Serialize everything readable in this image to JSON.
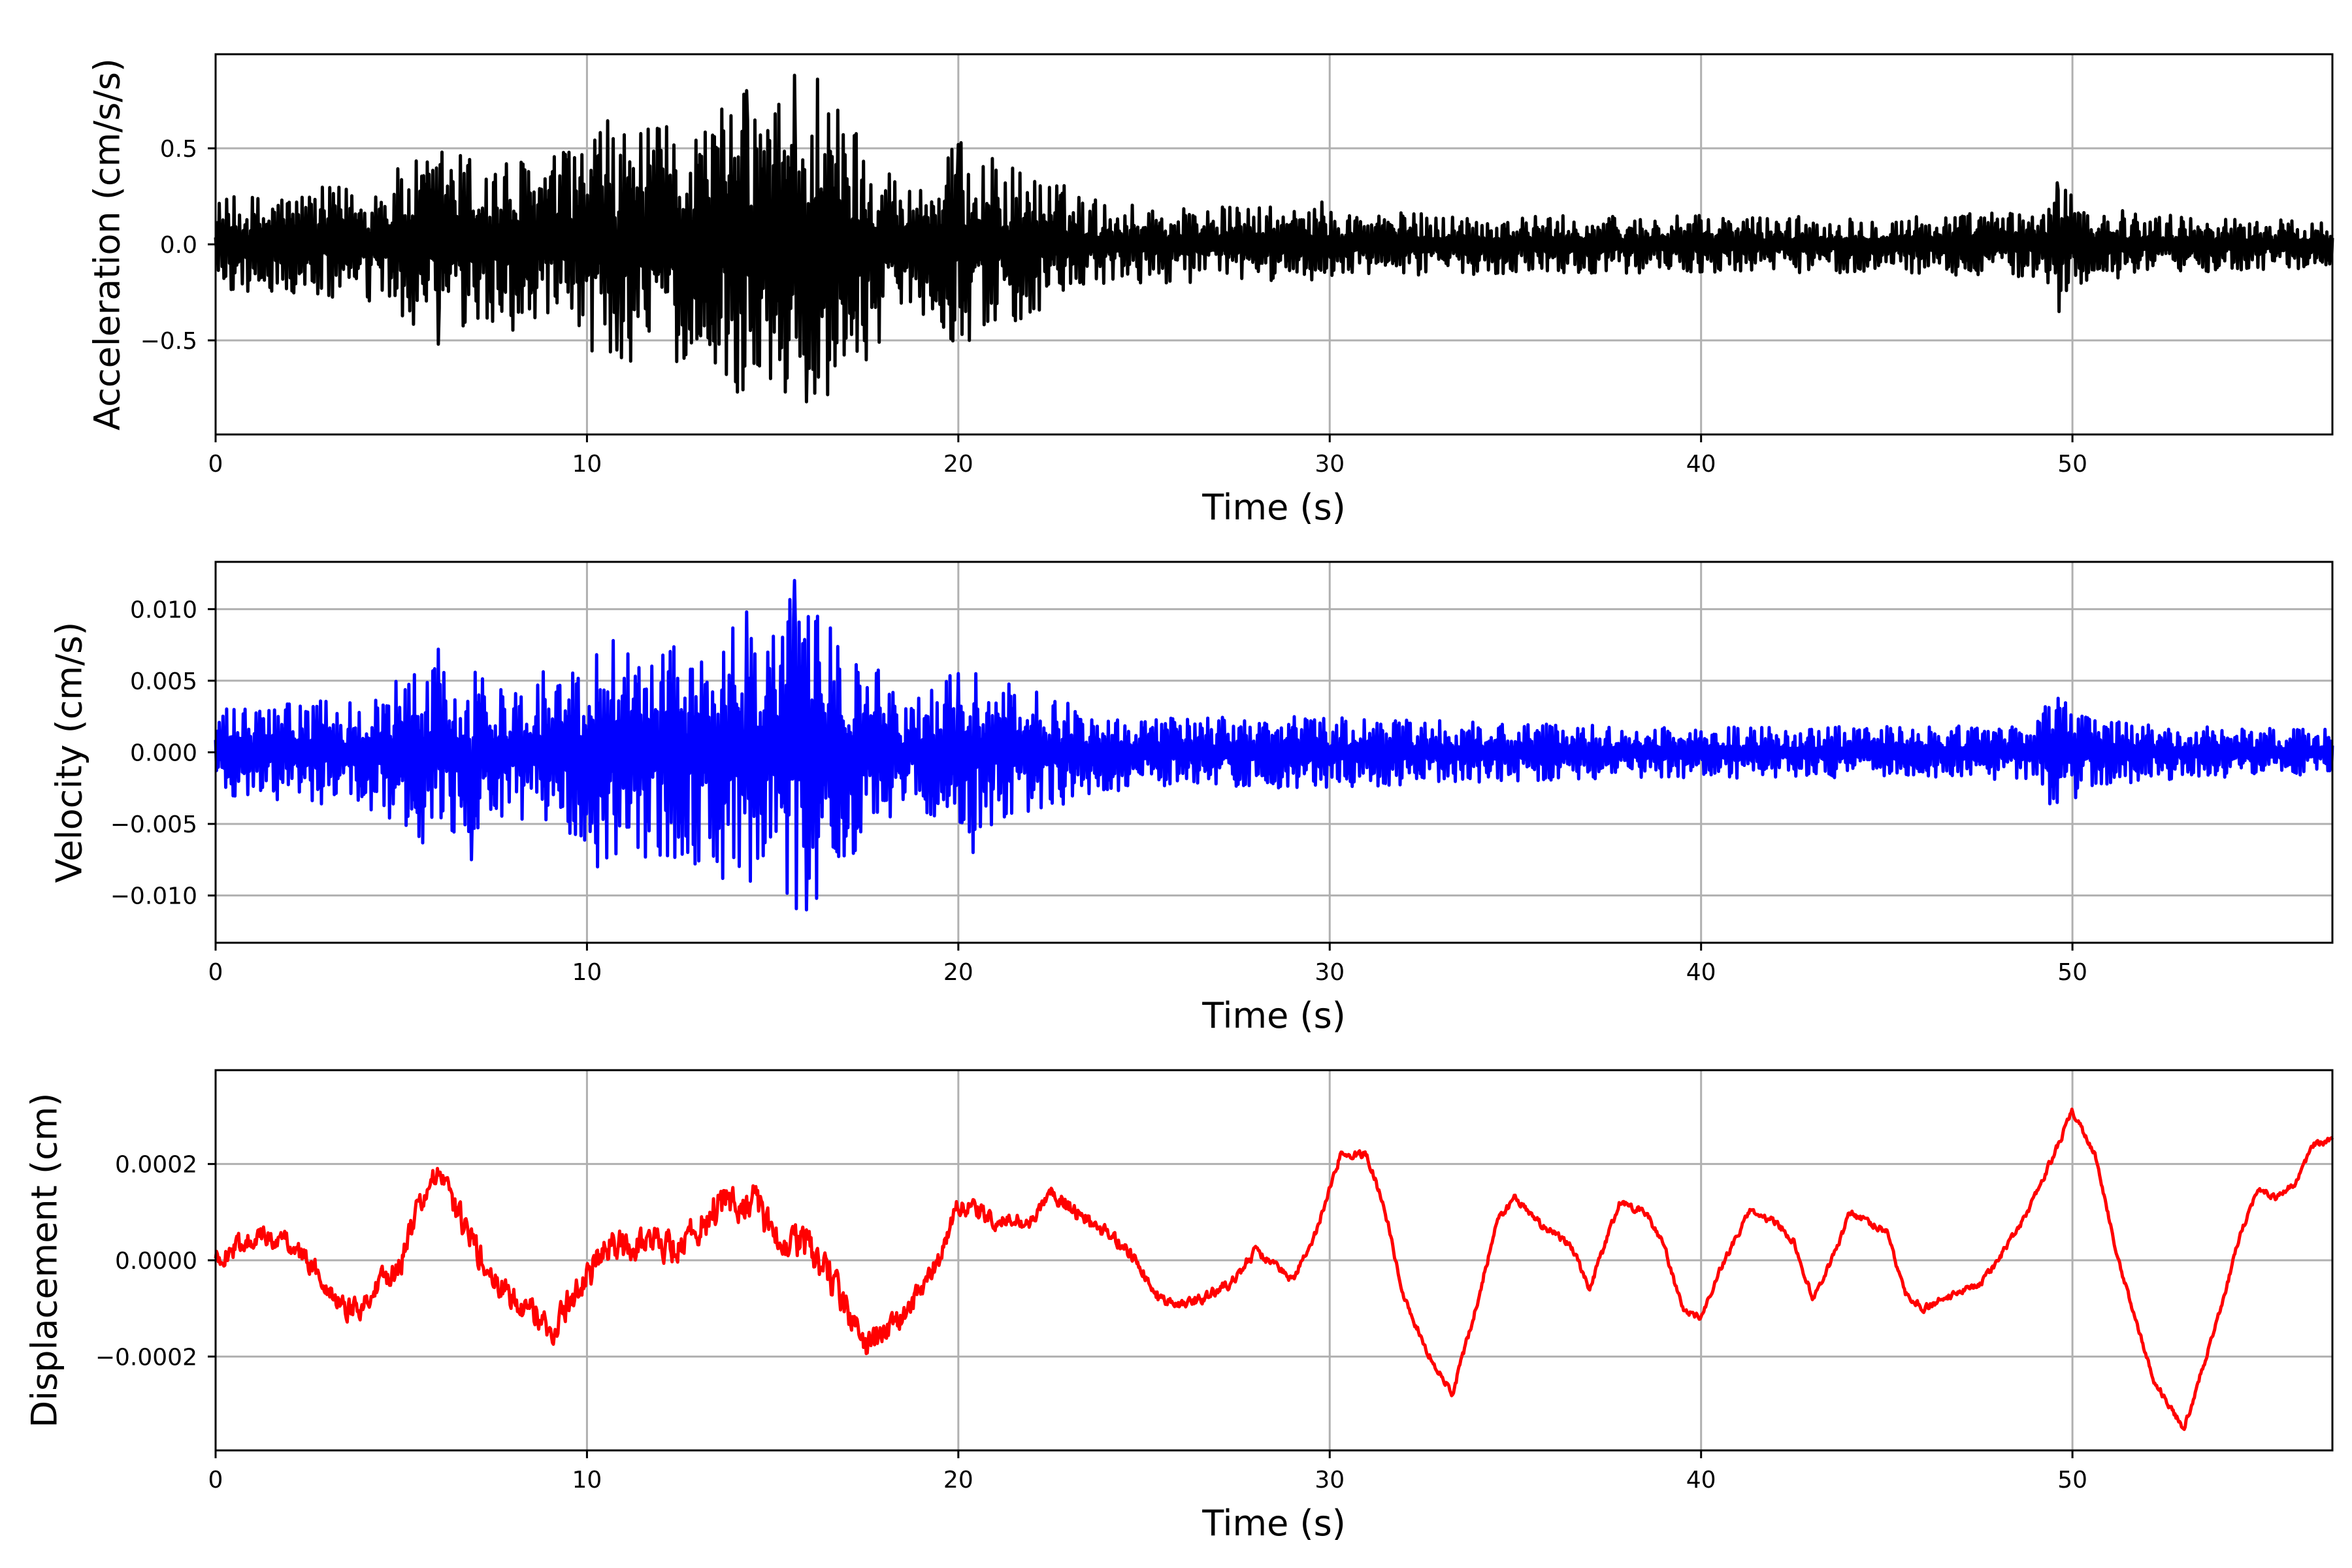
{
  "chart_data": [
    {
      "type": "line",
      "name_key": "acceleration",
      "xlabel": "Time (s)",
      "ylabel": "Acceleration (cm/s/s)",
      "xlim": [
        0,
        57
      ],
      "ylim": [
        -0.99,
        0.99
      ],
      "xticks": [
        0,
        10,
        20,
        30,
        40,
        50
      ],
      "xtick_labels": [
        "0",
        "10",
        "20",
        "30",
        "40",
        "50"
      ],
      "yticks": [
        -0.5,
        0.0,
        0.5
      ],
      "ytick_labels": [
        "−0.5",
        "0.0",
        "0.5"
      ],
      "grid": true,
      "color": "#000000",
      "envelope": [
        [
          0,
          0.24
        ],
        [
          2,
          0.28
        ],
        [
          4,
          0.32
        ],
        [
          5.5,
          0.45
        ],
        [
          6.5,
          0.5
        ],
        [
          8,
          0.45
        ],
        [
          9.5,
          0.5
        ],
        [
          10.5,
          0.65
        ],
        [
          11.5,
          0.6
        ],
        [
          13,
          0.65
        ],
        [
          14.2,
          0.8
        ],
        [
          15,
          0.75
        ],
        [
          15.6,
          0.88
        ],
        [
          16.2,
          0.85
        ],
        [
          17,
          0.7
        ],
        [
          17.8,
          0.55
        ],
        [
          18.5,
          0.3
        ],
        [
          19.5,
          0.42
        ],
        [
          20,
          0.55
        ],
        [
          21,
          0.45
        ],
        [
          22,
          0.38
        ],
        [
          24,
          0.22
        ],
        [
          26,
          0.2
        ],
        [
          28,
          0.2
        ],
        [
          30,
          0.18
        ],
        [
          35,
          0.15
        ],
        [
          40,
          0.15
        ],
        [
          45,
          0.15
        ],
        [
          49,
          0.18
        ],
        [
          49.6,
          0.32
        ],
        [
          50.3,
          0.2
        ],
        [
          53,
          0.15
        ],
        [
          57,
          0.12
        ]
      ],
      "peaks": [
        [
          14.3,
          0.8
        ],
        [
          15.2,
          -0.6
        ],
        [
          15.6,
          0.88
        ],
        [
          15.9,
          -0.82
        ],
        [
          16.2,
          0.86
        ],
        [
          14.5,
          -0.62
        ],
        [
          20,
          0.52
        ],
        [
          20.3,
          -0.5
        ],
        [
          49.6,
          0.32
        ],
        [
          49.65,
          -0.35
        ],
        [
          29.8,
          0.22
        ],
        [
          10.7,
          0.55
        ],
        [
          10.8,
          -0.55
        ],
        [
          6.1,
          0.48
        ],
        [
          6,
          -0.52
        ]
      ]
    },
    {
      "type": "line",
      "name_key": "velocity",
      "xlabel": "Time (s)",
      "ylabel": "Velocity (cm/s)",
      "xlim": [
        0,
        57
      ],
      "ylim": [
        -0.0133,
        0.0133
      ],
      "xticks": [
        0,
        10,
        20,
        30,
        40,
        50
      ],
      "xtick_labels": [
        "0",
        "10",
        "20",
        "30",
        "40",
        "50"
      ],
      "yticks": [
        -0.01,
        -0.005,
        0.0,
        0.005,
        0.01
      ],
      "ytick_labels": [
        "−0.010",
        "−0.005",
        "0.000",
        "0.005",
        "0.010"
      ],
      "grid": true,
      "color": "#0000ff",
      "envelope": [
        [
          0,
          0.003
        ],
        [
          2,
          0.0035
        ],
        [
          4,
          0.0038
        ],
        [
          5.5,
          0.0065
        ],
        [
          6.5,
          0.006
        ],
        [
          8,
          0.005
        ],
        [
          9.5,
          0.0065
        ],
        [
          10.5,
          0.0085
        ],
        [
          11.5,
          0.0075
        ],
        [
          13,
          0.008
        ],
        [
          14.2,
          0.0095
        ],
        [
          15,
          0.008
        ],
        [
          15.6,
          0.0115
        ],
        [
          16.2,
          0.0105
        ],
        [
          17,
          0.0075
        ],
        [
          17.8,
          0.006
        ],
        [
          18.5,
          0.0035
        ],
        [
          19.5,
          0.005
        ],
        [
          20,
          0.006
        ],
        [
          21,
          0.005
        ],
        [
          22,
          0.0045
        ],
        [
          24,
          0.0028
        ],
        [
          26,
          0.0025
        ],
        [
          28,
          0.0025
        ],
        [
          30,
          0.0025
        ],
        [
          35,
          0.002
        ],
        [
          40,
          0.0018
        ],
        [
          45,
          0.0018
        ],
        [
          49,
          0.002
        ],
        [
          49.6,
          0.005
        ],
        [
          50.3,
          0.0025
        ],
        [
          53,
          0.0018
        ],
        [
          57,
          0.0016
        ]
      ],
      "peaks": [
        [
          15.6,
          0.012
        ],
        [
          15.9,
          -0.011
        ],
        [
          14.3,
          0.0098
        ],
        [
          14.4,
          -0.009
        ],
        [
          20,
          0.0055
        ],
        [
          20.4,
          -0.007
        ],
        [
          49.6,
          0.005
        ],
        [
          49.6,
          -0.0035
        ],
        [
          6,
          0.0072
        ],
        [
          6.9,
          -0.0075
        ],
        [
          10.7,
          0.0078
        ]
      ]
    },
    {
      "type": "line",
      "name_key": "displacement",
      "xlabel": "Time (s)",
      "ylabel": "Displacement (cm)",
      "xlim": [
        0,
        57
      ],
      "ylim": [
        -0.000395,
        0.000395
      ],
      "xticks": [
        0,
        10,
        20,
        30,
        40,
        50
      ],
      "xtick_labels": [
        "0",
        "10",
        "20",
        "30",
        "40",
        "50"
      ],
      "yticks": [
        -0.0002,
        0.0,
        0.0002
      ],
      "ytick_labels": [
        "−0.0002",
        "0.0000",
        "0.0002"
      ],
      "grid": true,
      "color": "#ff0000",
      "trend": [
        [
          0,
          0
        ],
        [
          1,
          5e-05
        ],
        [
          2,
          4e-05
        ],
        [
          3,
          -5e-05
        ],
        [
          3.5,
          -0.0001
        ],
        [
          4,
          -9e-05
        ],
        [
          5,
          0
        ],
        [
          5.5,
          0.00012
        ],
        [
          6,
          0.00018
        ],
        [
          6.5,
          0.0001
        ],
        [
          7.5,
          -5e-05
        ],
        [
          8.5,
          -0.0001
        ],
        [
          9,
          -0.00015
        ],
        [
          9.5,
          -9e-05
        ],
        [
          10.5,
          2e-05
        ],
        [
          11.5,
          4e-05
        ],
        [
          12.5,
          3e-05
        ],
        [
          13.5,
          0.00011
        ],
        [
          14.5,
          0.00012
        ],
        [
          15,
          5e-05
        ],
        [
          16,
          3e-05
        ],
        [
          17,
          -0.0001
        ],
        [
          17.5,
          -0.00018
        ],
        [
          18.5,
          -0.00012
        ],
        [
          19.5,
          0.0
        ],
        [
          20,
          0.00012
        ],
        [
          21,
          8e-05
        ],
        [
          22,
          8e-05
        ],
        [
          22.5,
          0.00014
        ],
        [
          23.5,
          8e-05
        ],
        [
          24.5,
          3e-05
        ],
        [
          25.5,
          -9e-05
        ],
        [
          26.5,
          -8e-05
        ],
        [
          27.3,
          -5e-05
        ],
        [
          28,
          2e-05
        ],
        [
          29,
          -4e-05
        ],
        [
          29.5,
          3e-05
        ],
        [
          30.3,
          0.00022
        ],
        [
          31,
          0.00022
        ],
        [
          31.5,
          0.0001
        ],
        [
          32,
          -8e-05
        ],
        [
          32.7,
          -0.0002
        ],
        [
          33.3,
          -0.00028
        ],
        [
          34,
          -8e-05
        ],
        [
          34.5,
          8e-05
        ],
        [
          35,
          0.00013
        ],
        [
          35.6,
          8e-05
        ],
        [
          36.5,
          3e-05
        ],
        [
          37,
          -6e-05
        ],
        [
          37.8,
          0.00012
        ],
        [
          38.5,
          0.0001
        ],
        [
          39,
          3e-05
        ],
        [
          39.5,
          -0.0001
        ],
        [
          40,
          -0.00012
        ],
        [
          40.5,
          -2e-05
        ],
        [
          41.3,
          0.0001
        ],
        [
          42,
          8e-05
        ],
        [
          42.5,
          4e-05
        ],
        [
          43,
          -8e-05
        ],
        [
          43.7,
          3e-05
        ],
        [
          44,
          0.0001
        ],
        [
          45,
          6e-05
        ],
        [
          45.5,
          -7e-05
        ],
        [
          46,
          -0.0001
        ],
        [
          46.5,
          -8e-05
        ],
        [
          47.5,
          -5e-05
        ],
        [
          48,
          0.0
        ],
        [
          48.8,
          0.0001
        ],
        [
          49.5,
          0.00022
        ],
        [
          50,
          0.00031
        ],
        [
          50.6,
          0.00022
        ],
        [
          51.3,
          -2e-05
        ],
        [
          52.2,
          -0.00025
        ],
        [
          53,
          -0.00035
        ],
        [
          53.6,
          -0.0002
        ],
        [
          54,
          -0.0001
        ],
        [
          54.5,
          5e-05
        ],
        [
          55,
          0.00015
        ],
        [
          55.5,
          0.00013
        ],
        [
          56,
          0.00016
        ],
        [
          56.5,
          0.00024
        ],
        [
          57,
          0.00025
        ]
      ],
      "noise": [
        [
          0,
          3e-05
        ],
        [
          5,
          4e-05
        ],
        [
          10,
          5e-05
        ],
        [
          14,
          6e-05
        ],
        [
          17,
          5e-05
        ],
        [
          18,
          4e-05
        ],
        [
          20,
          3e-05
        ],
        [
          25,
          2e-05
        ],
        [
          30,
          1.2e-05
        ],
        [
          57,
          1e-05
        ]
      ]
    }
  ]
}
